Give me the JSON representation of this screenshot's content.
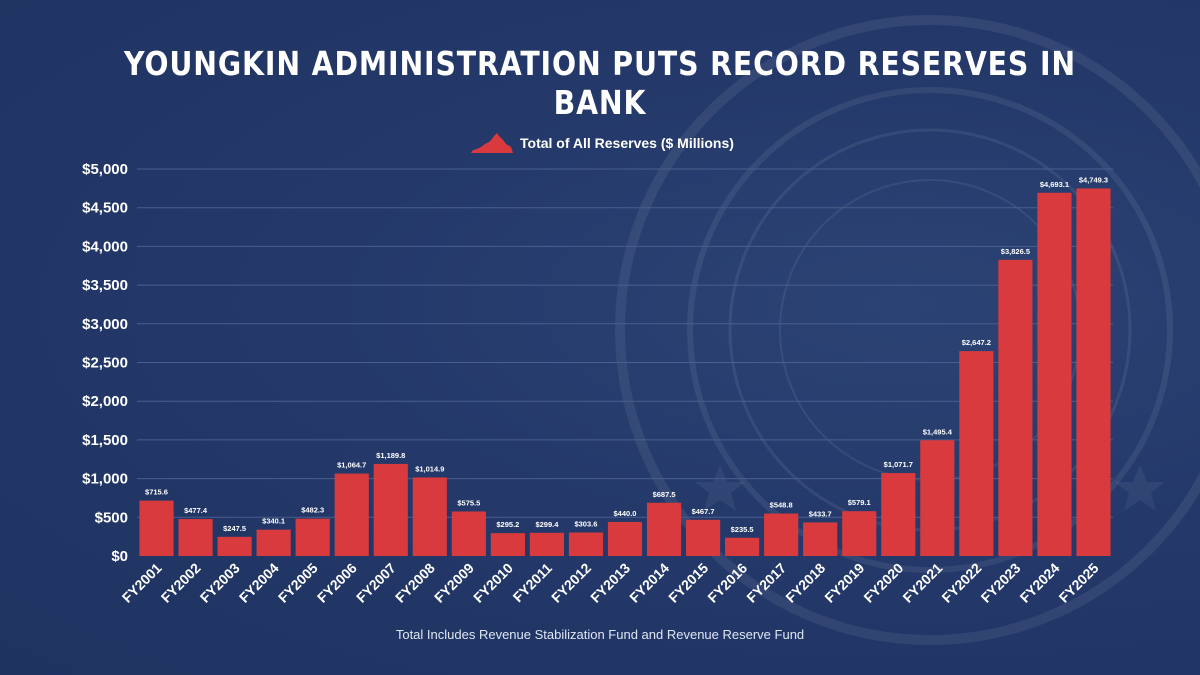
{
  "title": "YOUNGKIN ADMINISTRATION PUTS RECORD RESERVES IN BANK",
  "footnote": "Total Includes Revenue Stabilization Fund and Revenue Reserve Fund",
  "colors": {
    "bar": "#d93a3d",
    "background": "#24396a",
    "gridline": "#4a5f8c",
    "text": "#ffffff"
  },
  "legend_icon": "virginia-state-shape-icon",
  "chart_data": {
    "type": "bar",
    "legend": "Total of All Reserves ($ Millions)",
    "legend_position": "top-center",
    "grid": true,
    "ylim": [
      0,
      5000
    ],
    "yticks": [
      0,
      500,
      1000,
      1500,
      2000,
      2500,
      3000,
      3500,
      4000,
      4500,
      5000
    ],
    "ytick_labels": [
      "$0",
      "$500",
      "$1,000",
      "$1,500",
      "$2,000",
      "$2,500",
      "$3,000",
      "$3,500",
      "$4,000",
      "$4,500",
      "$5,000"
    ],
    "categories": [
      "FY2001",
      "FY2002",
      "FY2003",
      "FY2004",
      "FY2005",
      "FY2006",
      "FY2007",
      "FY2008",
      "FY2009",
      "FY2010",
      "FY2011",
      "FY2012",
      "FY2013",
      "FY2014",
      "FY2015",
      "FY2016",
      "FY2017",
      "FY2018",
      "FY2019",
      "FY2020",
      "FY2021",
      "FY2022",
      "FY2023",
      "FY2024",
      "FY2025"
    ],
    "values": [
      715.6,
      477.4,
      247.5,
      340.1,
      482.3,
      1064.7,
      1189.8,
      1014.9,
      575.5,
      295.2,
      299.4,
      303.6,
      440.0,
      687.5,
      467.7,
      235.5,
      548.8,
      433.7,
      579.1,
      1071.7,
      1495.4,
      2647.2,
      3826.5,
      4693.1,
      4749.3
    ],
    "data_labels": [
      "$715.6",
      "$477.4",
      "$247.5",
      "$340.1",
      "$482.3",
      "$1,064.7",
      "$1,189.8",
      "$1,014.9",
      "$575.5",
      "$295.2",
      "$299.4",
      "$303.6",
      "$440.0",
      "$687.5",
      "$467.7",
      "$235.5",
      "$548.8",
      "$433.7",
      "$579.1",
      "$1,071.7",
      "$1,495.4",
      "$2,647.2",
      "$3,826.5",
      "$4,693.1",
      "$4,749.3"
    ]
  }
}
